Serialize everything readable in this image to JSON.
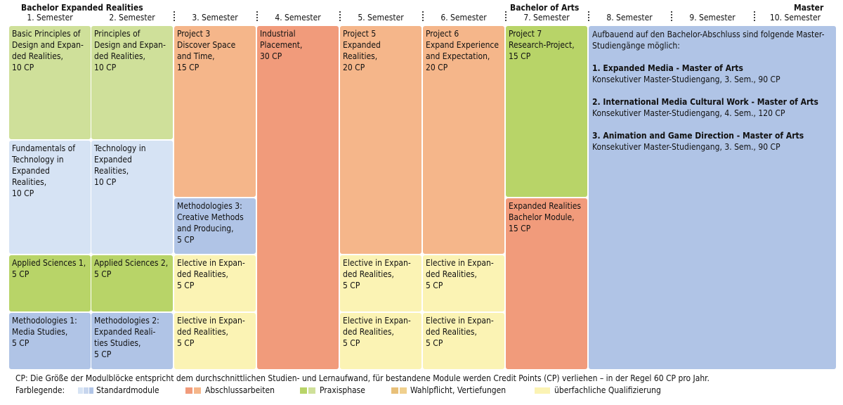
{
  "header": {
    "bachelor_program": "Bachelor Expanded Realities",
    "bachelor_degree": "Bachelor of Arts",
    "master": "Master"
  },
  "semesters": [
    "1. Semester",
    "2. Semester",
    "3. Semester",
    "4. Semester",
    "5. Semester",
    "6. Semester",
    "7. Semester",
    "8. Semester",
    "9. Semester",
    "10. Semester"
  ],
  "modules": {
    "s1_basic": "Basic Principles of\nDesign and Expan-\nded Realities,\n10 CP",
    "s1_fund": "Fundamentals of\nTechnology in\nExpanded\nRealities,\n10 CP",
    "s1_applied": "Applied Sciences 1,\n5 CP",
    "s1_method": "Methodologies 1:\nMedia Studies,\n5 CP",
    "s2_princ": "Principles of\nDesign and Expan-\nded Realities,\n10 CP",
    "s2_tech": "Technology in\nExpanded\nRealities,\n10 CP",
    "s2_applied": "Applied Sciences 2,\n5 CP",
    "s2_method": "Methodologies 2:\nExpanded Reali-\nties Studies,\n5 CP",
    "s3_project": "Project 3\nDiscover Space\nand Time,\n15 CP",
    "s3_method": "Methodologies 3:\nCreative Methods\nand Producing,\n5 CP",
    "s3_elective1": "Elective in Expan-\nded Realities,\n5 CP",
    "s3_elective2": "Elective in Expan-\nded Realities,\n5 CP",
    "s4_placement": "Industrial\nPlacement,\n30 CP",
    "s5_project": "Project 5\nExpanded\nRealities,\n20 CP",
    "s5_elective1": "Elective in Expan-\nded Realities,\n5 CP",
    "s5_elective2": "Elective in Expan-\nded Realities,\n5 CP",
    "s6_project": "Project 6\nExpand Experience\nand Expectation,\n20 CP",
    "s6_elective1": "Elective in Expan-\nded Realities,\n5 CP",
    "s6_elective2": "Elective in Expan-\nded Realities,\n5 CP",
    "s7_project": "Project 7\nResearch-Project,\n15 CP",
    "s7_bachelor": "Expanded Realities\nBachelor Module,\n15 CP"
  },
  "master_box": {
    "intro": "Aufbauend auf den Bachelor-Abschluss sind folgende Master-Studiengänge möglich:",
    "programs": [
      {
        "title": "1. Expanded Media - Master of Arts",
        "detail": "Konsekutiver Master-Studiengang, 3. Sem., 90 CP"
      },
      {
        "title": "2. International Media Cultural Work - Master of Arts",
        "detail": "Konsekutiver Master-Studiengang, 4. Sem., 120 CP"
      },
      {
        "title": "3. Animation and Game Direction - Master of Arts",
        "detail": "Konsekutiver Master-Studiengang, 3. Sem., 90 CP"
      }
    ]
  },
  "footnote": "CP: Die Größe der Modulblöcke entspricht dem durchschnittlichen Studien- und Lernaufwand, für bestandene Module werden Credit Points (CP) verliehen – in der Regel 60 CP pro Jahr.",
  "legend": {
    "title": "Farblegende:",
    "items": [
      {
        "label": "Standardmodule",
        "colors": [
          "#d6e3f4",
          "#b0c4e6",
          "#c8d6ee"
        ]
      },
      {
        "label": "Abschlussarbeiten",
        "colors": [
          "#f19b7b",
          "#f5b68a"
        ]
      },
      {
        "label": "Praxisphase",
        "colors": [
          "#b8d468",
          "#cfe09a"
        ]
      },
      {
        "label": "Wahlpflicht, Vertiefungen",
        "colors": [
          "#e8c079",
          "#f0d08e"
        ]
      },
      {
        "label": "überfachliche Qualifizierung",
        "colors": [
          "#fbf3b4",
          "#fbf3b4"
        ]
      }
    ]
  }
}
